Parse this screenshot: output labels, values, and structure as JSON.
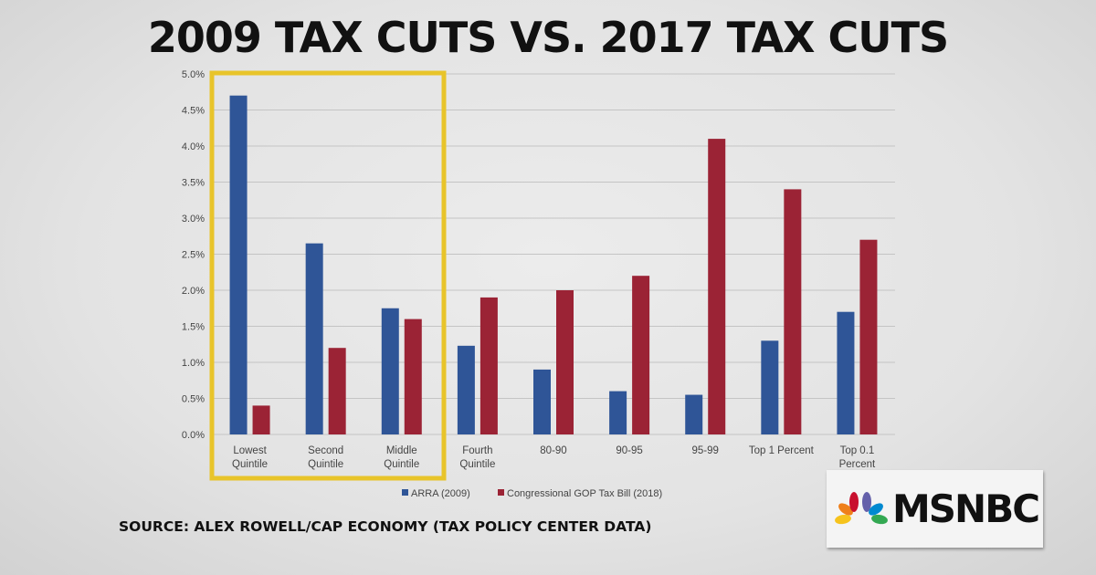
{
  "title": "2009 TAX CUTS VS. 2017 TAX CUTS",
  "source": "SOURCE: ALEX ROWELL/CAP ECONOMY (TAX POLICY CENTER DATA)",
  "logo": {
    "text": "MSNBC",
    "icon": "nbc-peacock-icon"
  },
  "highlight": {
    "color": "#e8c42a",
    "categories": [
      "Lowest Quintile",
      "Second Quintile",
      "Middle Quintile"
    ]
  },
  "chart_data": {
    "type": "bar",
    "title": "",
    "xlabel": "",
    "ylabel": "",
    "ylim": [
      0,
      5.0
    ],
    "yticks": [
      "0.0%",
      "0.5%",
      "1.0%",
      "1.5%",
      "2.0%",
      "2.5%",
      "3.0%",
      "3.5%",
      "4.0%",
      "4.5%",
      "5.0%"
    ],
    "grid": true,
    "legend": "bottom",
    "categories": [
      [
        "Lowest",
        "Quintile"
      ],
      [
        "Second",
        "Quintile"
      ],
      [
        "Middle",
        "Quintile"
      ],
      [
        "Fourth",
        "Quintile"
      ],
      [
        "80-90"
      ],
      [
        "90-95"
      ],
      [
        "95-99"
      ],
      [
        "Top 1 Percent"
      ],
      [
        "Top 0.1",
        "Percent"
      ]
    ],
    "series": [
      {
        "name": "ARRA (2009)",
        "color": "#2f5597",
        "values": [
          4.7,
          2.65,
          1.75,
          1.23,
          0.9,
          0.6,
          0.55,
          1.3,
          1.7
        ]
      },
      {
        "name": "Congressional GOP Tax Bill (2018)",
        "color": "#9b2335",
        "values": [
          0.4,
          1.2,
          1.6,
          1.9,
          2.0,
          2.2,
          4.1,
          3.4,
          2.7
        ]
      }
    ]
  }
}
